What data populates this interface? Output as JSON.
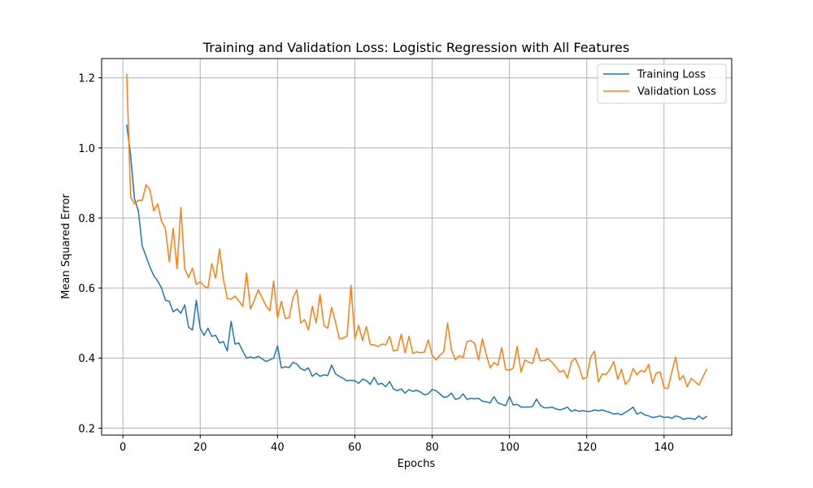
{
  "chart_data": {
    "type": "line",
    "title": "Training and Validation Loss: Logistic Regression with All Features",
    "xlabel": "Epochs",
    "ylabel": "Mean Squared Error",
    "xlim": [
      -5.5,
      157.5
    ],
    "ylim": [
      0.18,
      1.255
    ],
    "xticks": [
      0,
      20,
      40,
      60,
      80,
      100,
      120,
      140
    ],
    "yticks": [
      0.2,
      0.4,
      0.6,
      0.8,
      1.0,
      1.2
    ],
    "ytick_labels": [
      "0.2",
      "0.4",
      "0.6",
      "0.8",
      "1.0",
      "1.2"
    ],
    "grid": true,
    "legend_position": "top-right",
    "series": [
      {
        "name": "Training Loss",
        "color": "#1f77b4",
        "values": [
          1.065,
          0.98,
          0.855,
          0.82,
          0.72,
          0.69,
          0.66,
          0.635,
          0.62,
          0.6,
          0.565,
          0.562,
          0.532,
          0.54,
          0.528,
          0.552,
          0.488,
          0.48,
          0.565,
          0.485,
          0.465,
          0.485,
          0.462,
          0.465,
          0.443,
          0.447,
          0.42,
          0.505,
          0.44,
          0.443,
          0.42,
          0.4,
          0.403,
          0.4,
          0.405,
          0.398,
          0.39,
          0.395,
          0.4,
          0.435,
          0.372,
          0.375,
          0.373,
          0.388,
          0.383,
          0.37,
          0.365,
          0.372,
          0.348,
          0.357,
          0.348,
          0.352,
          0.35,
          0.38,
          0.355,
          0.348,
          0.342,
          0.335,
          0.337,
          0.335,
          0.328,
          0.34,
          0.336,
          0.325,
          0.345,
          0.325,
          0.328,
          0.318,
          0.333,
          0.312,
          0.307,
          0.312,
          0.3,
          0.31,
          0.305,
          0.308,
          0.303,
          0.295,
          0.298,
          0.31,
          0.307,
          0.298,
          0.288,
          0.29,
          0.3,
          0.282,
          0.285,
          0.298,
          0.282,
          0.285,
          0.284,
          0.285,
          0.277,
          0.275,
          0.272,
          0.29,
          0.272,
          0.268,
          0.264,
          0.29,
          0.266,
          0.268,
          0.26,
          0.26,
          0.26,
          0.262,
          0.283,
          0.265,
          0.258,
          0.258,
          0.26,
          0.255,
          0.252,
          0.255,
          0.26,
          0.248,
          0.252,
          0.248,
          0.25,
          0.248,
          0.248,
          0.252,
          0.25,
          0.252,
          0.248,
          0.245,
          0.24,
          0.242,
          0.238,
          0.245,
          0.252,
          0.26,
          0.24,
          0.245,
          0.238,
          0.235,
          0.23,
          0.232,
          0.235,
          0.23,
          0.232,
          0.228,
          0.235,
          0.232,
          0.225,
          0.228,
          0.228,
          0.225,
          0.235,
          0.226,
          0.233
        ]
      },
      {
        "name": "Validation Loss",
        "color": "#ff7f0e",
        "values": [
          1.21,
          0.86,
          0.84,
          0.85,
          0.85,
          0.895,
          0.88,
          0.82,
          0.84,
          0.79,
          0.77,
          0.675,
          0.77,
          0.655,
          0.83,
          0.655,
          0.63,
          0.657,
          0.61,
          0.618,
          0.605,
          0.6,
          0.67,
          0.628,
          0.712,
          0.625,
          0.57,
          0.568,
          0.577,
          0.563,
          0.548,
          0.643,
          0.54,
          0.565,
          0.595,
          0.572,
          0.55,
          0.535,
          0.62,
          0.515,
          0.562,
          0.513,
          0.515,
          0.572,
          0.595,
          0.5,
          0.51,
          0.48,
          0.548,
          0.5,
          0.582,
          0.493,
          0.485,
          0.545,
          0.503,
          0.455,
          0.457,
          0.463,
          0.608,
          0.455,
          0.493,
          0.45,
          0.49,
          0.438,
          0.438,
          0.433,
          0.44,
          0.438,
          0.462,
          0.42,
          0.423,
          0.468,
          0.415,
          0.462,
          0.413,
          0.418,
          0.415,
          0.417,
          0.452,
          0.408,
          0.395,
          0.408,
          0.418,
          0.5,
          0.423,
          0.395,
          0.407,
          0.402,
          0.447,
          0.45,
          0.442,
          0.395,
          0.455,
          0.41,
          0.372,
          0.387,
          0.38,
          0.43,
          0.368,
          0.365,
          0.372,
          0.433,
          0.36,
          0.395,
          0.388,
          0.385,
          0.428,
          0.392,
          0.393,
          0.398,
          0.388,
          0.375,
          0.36,
          0.365,
          0.343,
          0.388,
          0.4,
          0.375,
          0.34,
          0.345,
          0.403,
          0.42,
          0.332,
          0.355,
          0.353,
          0.368,
          0.39,
          0.34,
          0.368,
          0.325,
          0.338,
          0.37,
          0.352,
          0.365,
          0.36,
          0.382,
          0.328,
          0.358,
          0.36,
          0.315,
          0.313,
          0.36,
          0.403,
          0.338,
          0.35,
          0.318,
          0.342,
          0.333,
          0.323,
          0.345,
          0.368
        ]
      }
    ]
  }
}
